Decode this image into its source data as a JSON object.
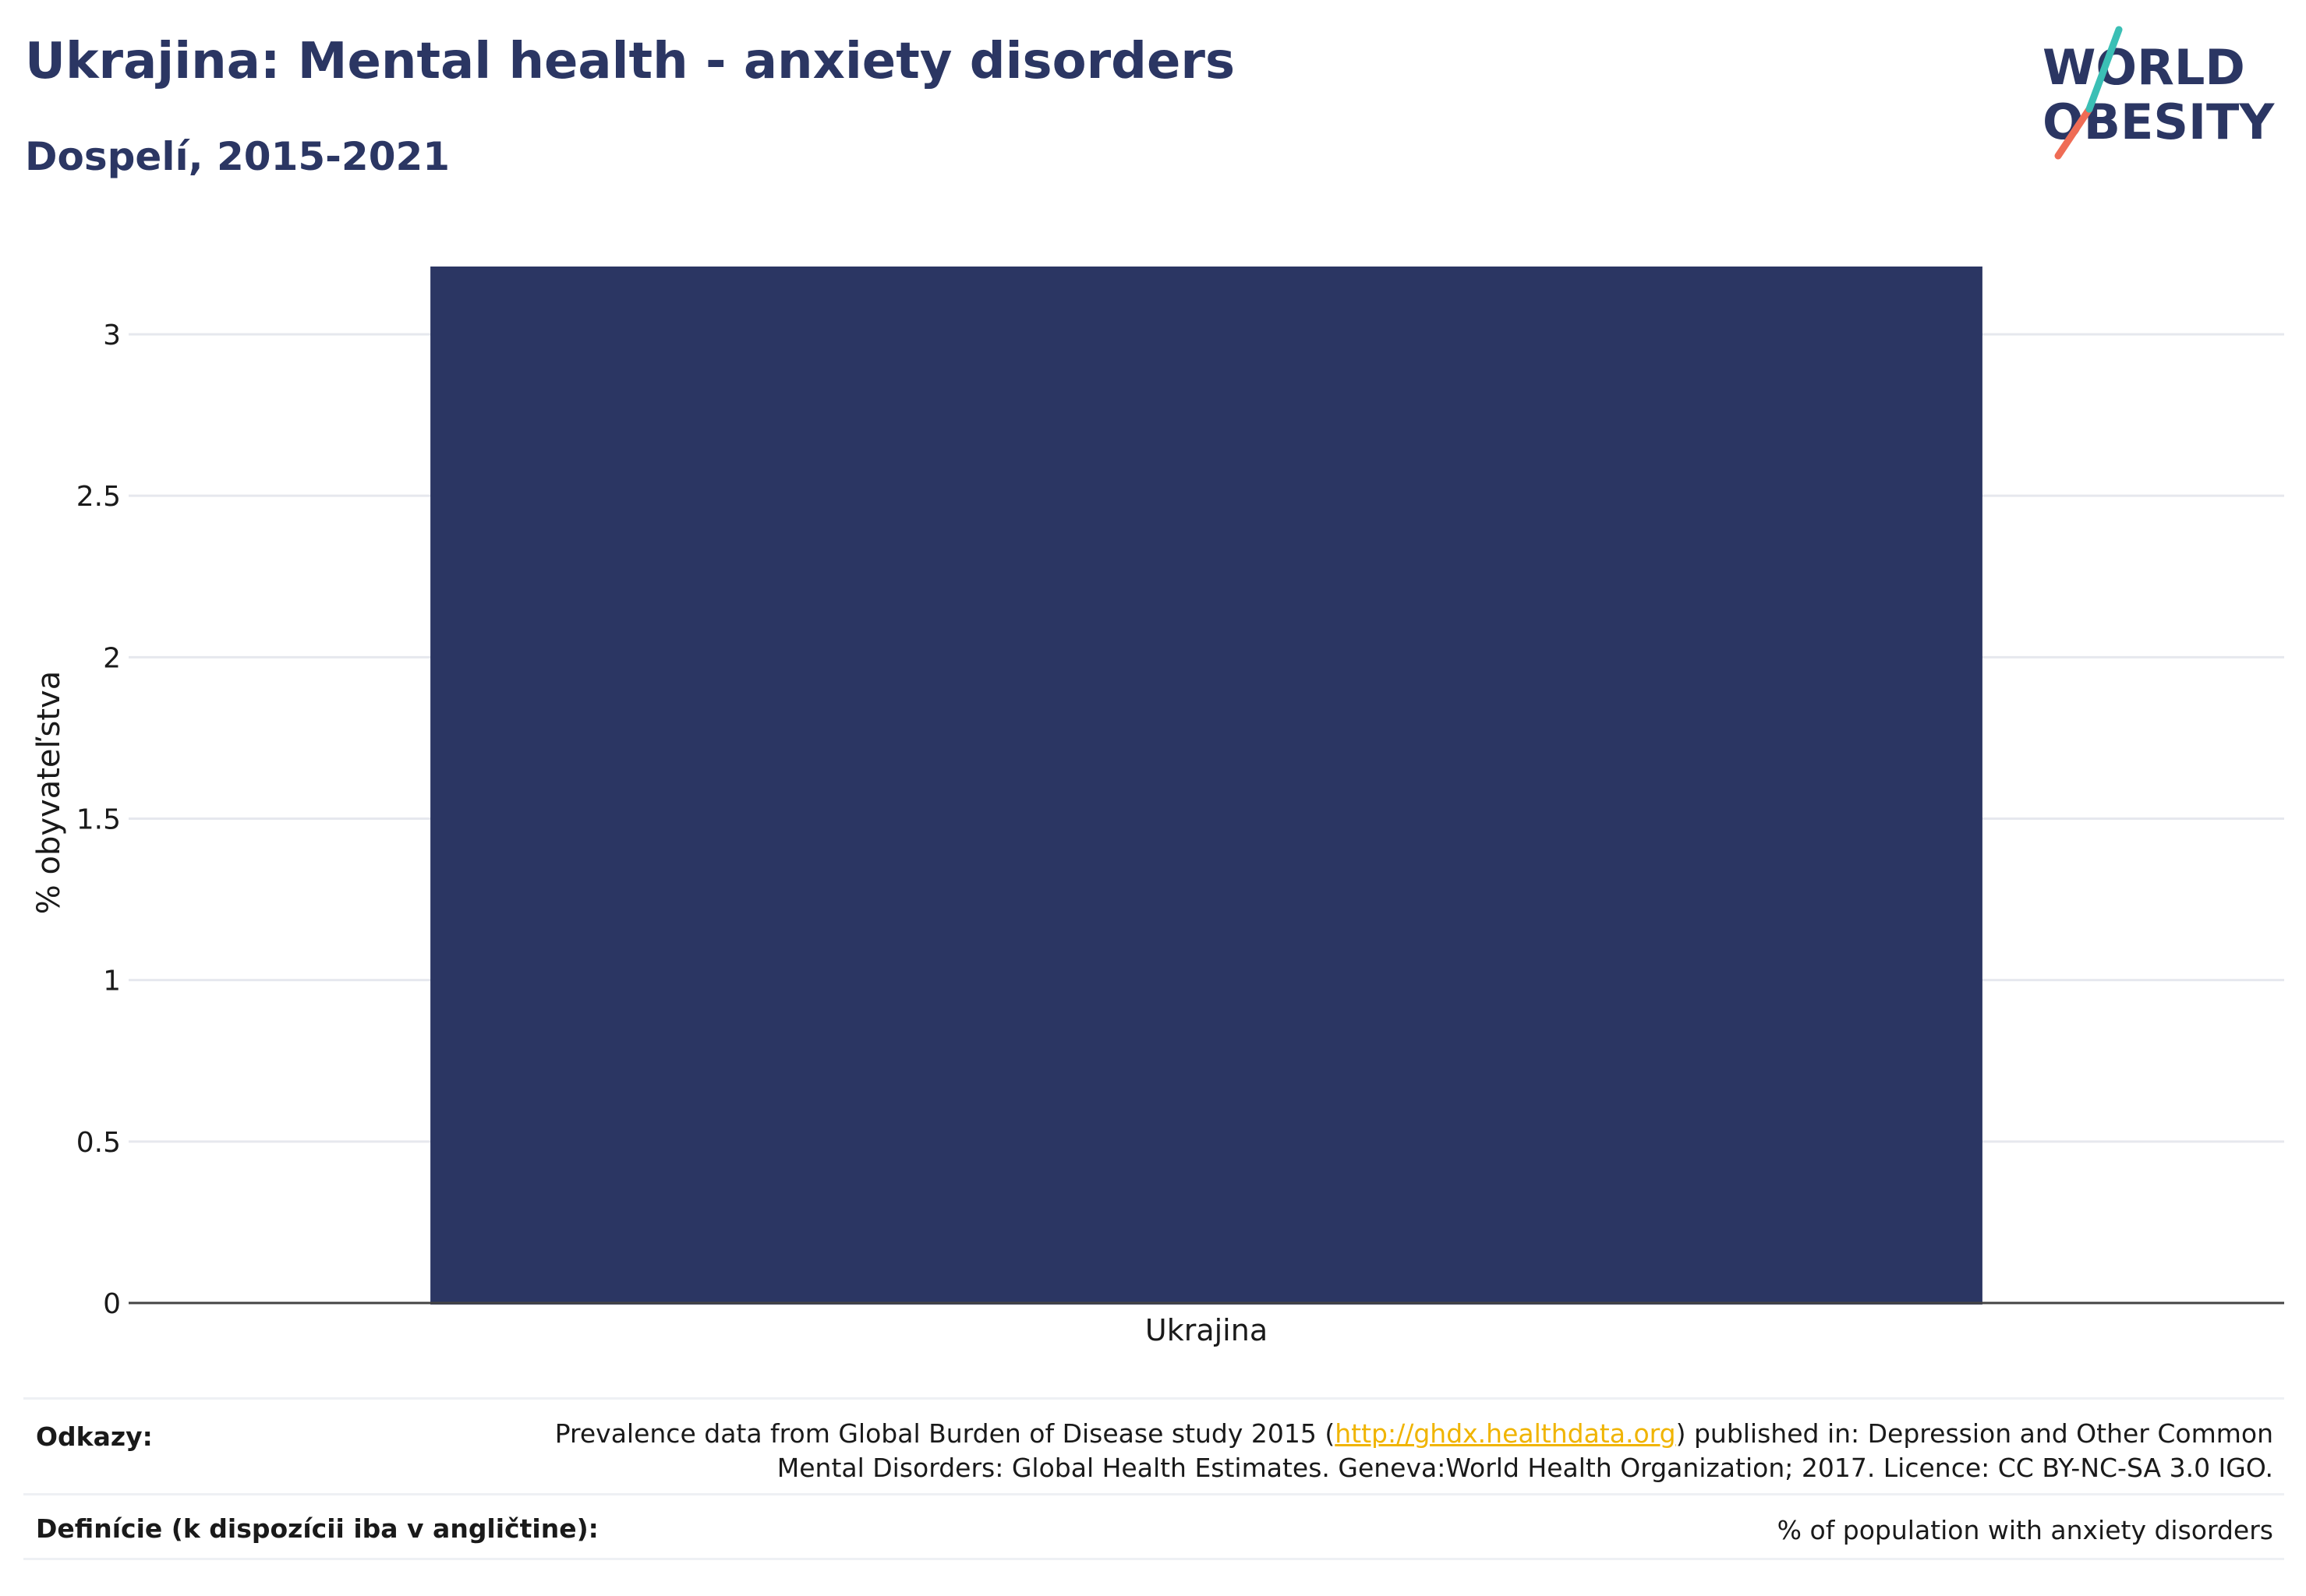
{
  "header": {
    "title": "Ukrajina: Mental health - anxiety disorders",
    "subtitle": "Dospelí, 2015-2021"
  },
  "logo": {
    "line1": "WORLD",
    "line2": "OBESITY",
    "colors": {
      "text": "#2b3663",
      "accent_teal": "#3bbfb5",
      "accent_coral": "#ef6c55"
    }
  },
  "chart_data": {
    "type": "bar",
    "categories": [
      "Ukrajina"
    ],
    "values": [
      3.21
    ],
    "ylabel": "% obyvateľstva",
    "xlabel": "",
    "ylim": [
      0,
      3.21
    ],
    "yticks": [
      0,
      0.5,
      1,
      1.5,
      2,
      2.5,
      3
    ],
    "ytick_labels": [
      "0",
      "0.5",
      "1",
      "1.5",
      "2",
      "2.5",
      "3"
    ],
    "grid": true,
    "bar_color": "#2b3663"
  },
  "footer": {
    "references_label": "Odkazy:",
    "references_text_before": "Prevalence data from Global Burden of Disease study 2015 (",
    "references_link": "http://ghdx.healthdata.org",
    "references_text_after": ") published in: Depression and Other Common",
    "references_line2": "Mental Disorders: Global Health Estimates. Geneva:World Health Organization; 2017. Licence: CC BY-NC-SA 3.0 IGO.",
    "definitions_label": "Definície (k dispozícii iba v angličtine):",
    "definitions_text": "% of population with anxiety disorders"
  }
}
